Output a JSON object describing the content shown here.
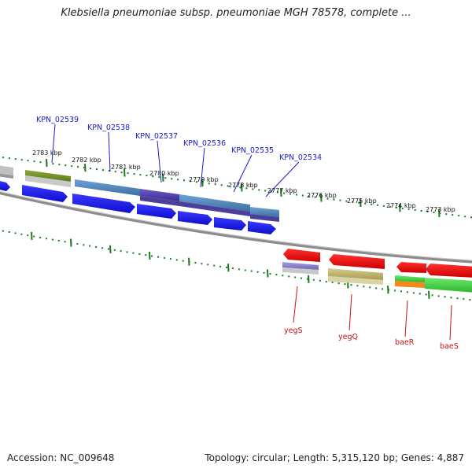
{
  "title": "Klebsiella pneumoniae subsp. pneumoniae MGH 78578, complete ...",
  "footer": {
    "accession": "Accession: NC_009648",
    "stats": "Topology: circular; Length: 5,315,120 bp; Genes: 4,887"
  },
  "scale_labels": [
    "2783 kbp",
    "2782 kbp",
    "2781 kbp",
    "2780 kbp",
    "2779 kbp",
    "2778 kbp",
    "2777 kbp",
    "2776 kbp",
    "2775 kbp",
    "2774 kbp",
    "2773 kbp"
  ],
  "forward_gene_labels": [
    "KPN_02539",
    "KPN_02538",
    "KPN_02537",
    "KPN_02536",
    "KPN_02535",
    "KPN_02534"
  ],
  "reverse_gene_labels": [
    "yegS",
    "yegQ",
    "baeR",
    "baeS"
  ],
  "colors": {
    "cds_forward": "#1a1aee",
    "cds_reverse": "#ee1111",
    "tick": "#1f7a1f",
    "label_forward": "#1a1acc",
    "label_reverse": "#cc1111",
    "backbone": "#8c8c8c"
  }
}
